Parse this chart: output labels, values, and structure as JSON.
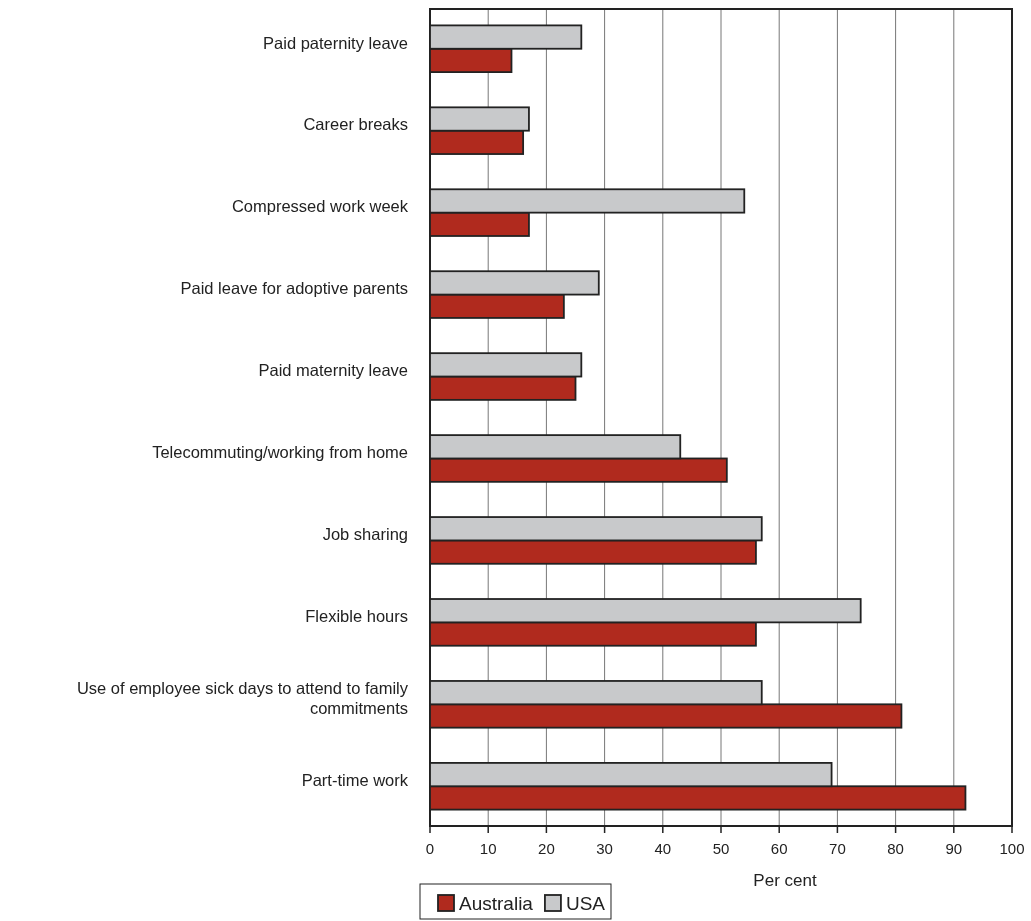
{
  "chart_data": {
    "type": "bar",
    "orientation": "horizontal",
    "categories": [
      "Paid paternity leave",
      "Career breaks",
      "Compressed work week",
      "Paid leave for adoptive parents",
      "Paid maternity leave",
      "Telecommuting/working from home",
      "Job sharing",
      "Flexible hours",
      "Use of employee sick days to attend to family commitments",
      "Part-time work"
    ],
    "series": [
      {
        "name": "Australia",
        "color": "#b02a1e",
        "values": [
          14,
          16,
          17,
          23,
          25,
          51,
          56,
          56,
          81,
          92
        ]
      },
      {
        "name": "USA",
        "color": "#c8c9cb",
        "values": [
          26,
          17,
          54,
          29,
          26,
          43,
          57,
          74,
          57,
          69
        ]
      }
    ],
    "xlabel": "Per cent",
    "xlim": [
      0,
      100
    ],
    "xticks": [
      0,
      10,
      20,
      30,
      40,
      50,
      60,
      70,
      80,
      90,
      100
    ],
    "grid": "x",
    "legend": "bottom"
  }
}
